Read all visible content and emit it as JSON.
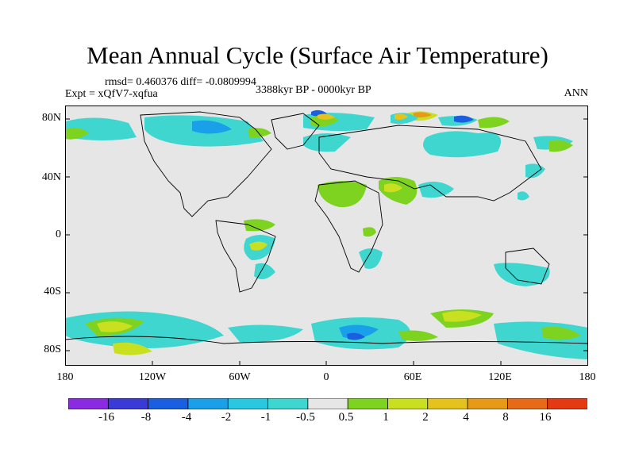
{
  "title": "Mean Annual Cycle (Surface Air Temperature)",
  "stats": "rmsd= 0.460376 diff= -0.0809994",
  "experiment": "Expt = xQfV7-xqfua",
  "period": "3388kyr BP - 0000kyr BP",
  "season": "ANN",
  "lat_labels": [
    "80N",
    "40N",
    "0",
    "40S",
    "80S"
  ],
  "lon_labels": [
    "180",
    "120W",
    "60W",
    "0",
    "60E",
    "120E",
    "180"
  ],
  "colorbar": {
    "labels": [
      "-16",
      "-8",
      "-4",
      "-2",
      "-1",
      "-0.5",
      "0.5",
      "1",
      "2",
      "4",
      "8",
      "16"
    ],
    "colors": [
      "#8a2be2",
      "#3a3ad6",
      "#1a5fe0",
      "#1aa0e8",
      "#2ac8e0",
      "#3fd6d0",
      "#e6e6e6",
      "#7ed320",
      "#c9e021",
      "#e6c21c",
      "#e69a17",
      "#e66a17",
      "#e33a14"
    ]
  }
}
